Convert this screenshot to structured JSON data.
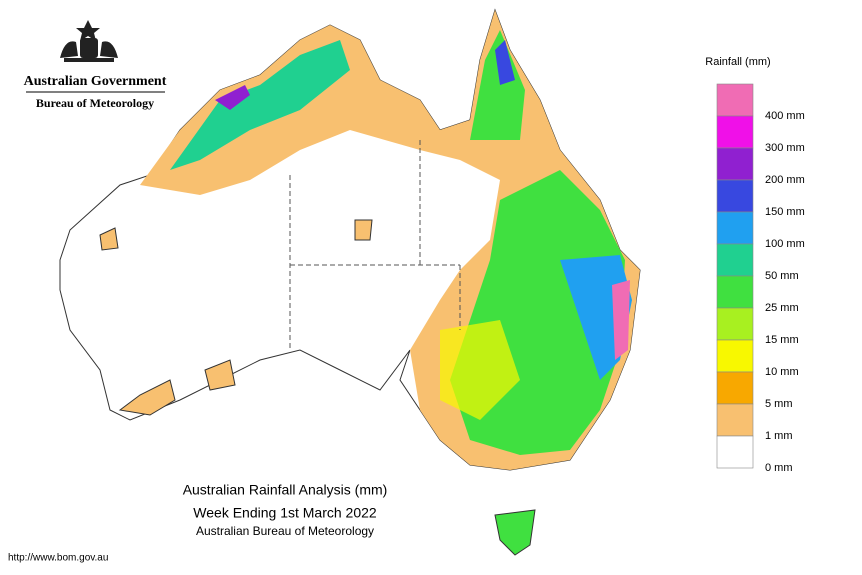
{
  "header": {
    "agency": "Australian Government",
    "bureau": "Bureau of Meteorology"
  },
  "legend": {
    "title": "Rainfall (mm)",
    "colors": [
      "#f06cb4",
      "#f010e8",
      "#9020d0",
      "#3848e0",
      "#20a0f0",
      "#20d090",
      "#40e040",
      "#a8f020",
      "#f8f800",
      "#f8a800",
      "#f8c070",
      "#ffffff"
    ],
    "labels": [
      "400 mm",
      "300 mm",
      "200 mm",
      "150 mm",
      "100 mm",
      "50 mm",
      "25 mm",
      "15 mm",
      "10 mm",
      "5 mm",
      "1 mm",
      "0 mm"
    ]
  },
  "title": {
    "line1": "Australian Rainfall Analysis (mm)",
    "line2": "Week Ending 1st March 2022",
    "line3": "Australian Bureau of Meteorology"
  },
  "footer": {
    "url": "http://www.bom.gov.au"
  }
}
